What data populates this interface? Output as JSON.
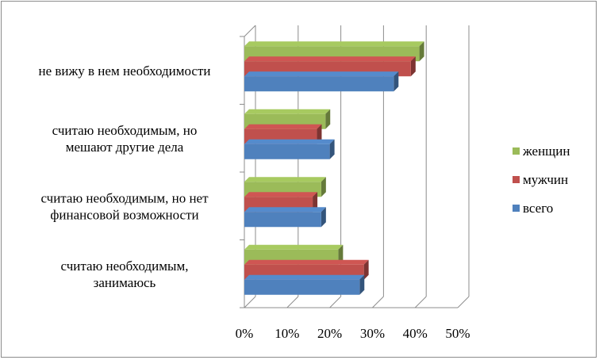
{
  "chart_data": {
    "type": "bar",
    "orientation": "horizontal",
    "style": "3d-clustered",
    "categories": [
      [
        "не вижу в нем необходимости"
      ],
      [
        "считаю необходимым, но",
        "мешают другие дела"
      ],
      [
        "считаю необходимым, но нет",
        "финансовой возможности"
      ],
      [
        "считаю необходимым,",
        "занимаюсь"
      ]
    ],
    "series": [
      {
        "name": "женщин",
        "color": "#9bbb59",
        "values": [
          41,
          19,
          18,
          22
        ]
      },
      {
        "name": "мужчин",
        "color": "#c0504d",
        "values": [
          39,
          17,
          16,
          28
        ]
      },
      {
        "name": "всего",
        "color": "#4f81bd",
        "values": [
          35,
          20,
          18,
          27
        ]
      }
    ],
    "xlim": [
      0,
      50
    ],
    "xticks": [
      "0%",
      "10%",
      "20%",
      "30%",
      "40%",
      "50%"
    ],
    "grid": true,
    "legend_position": "right"
  }
}
